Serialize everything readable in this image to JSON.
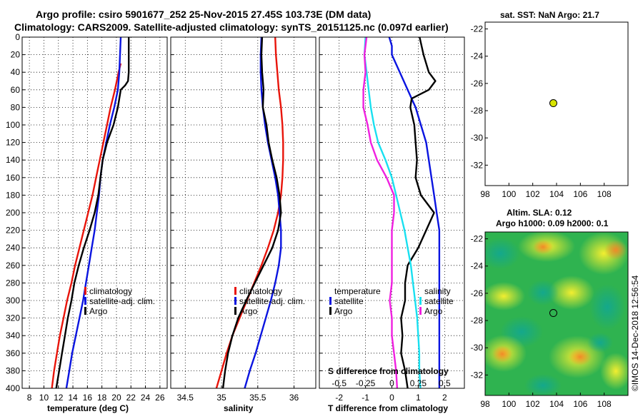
{
  "header": {
    "line1": "Argo profile: csiro 5901677_252 25-Nov-2015 27.45S 103.73E (DM data)",
    "line2": "Climatology: CARS2009. Satellite-adjusted climatology: synTS_20151125.nc (0.097d earlier)"
  },
  "colors": {
    "clim": "#e8140a",
    "sat": "#0a14e0",
    "argo": "#000000",
    "sat_sal": "#18e0f0",
    "clim_sal": "#f020e0"
  },
  "sidebar_stamp": "©IMOS 14-Dec-2018 12:56:54",
  "chart_data": [
    {
      "type": "line",
      "id": "temperature",
      "xlabel": "temperature (deg C)",
      "xlim": [
        7,
        27
      ],
      "ylim": [
        400,
        0
      ],
      "xticks": [
        8,
        10,
        12,
        14,
        16,
        18,
        20,
        22,
        24,
        26
      ],
      "yticks": [
        0,
        20,
        40,
        60,
        80,
        100,
        120,
        140,
        160,
        180,
        200,
        220,
        240,
        260,
        280,
        300,
        320,
        340,
        360,
        380,
        400
      ],
      "legend": [
        "climatology",
        "satellite-adj. clim.",
        "Argo"
      ],
      "series": [
        {
          "name": "climatology",
          "color": "clim",
          "points": [
            [
              20.6,
              30
            ],
            [
              20.3,
              40
            ],
            [
              19.8,
              60
            ],
            [
              19.2,
              80
            ],
            [
              18.7,
              100
            ],
            [
              18.2,
              120
            ],
            [
              17.7,
              140
            ],
            [
              17.2,
              160
            ],
            [
              16.7,
              180
            ],
            [
              16.1,
              200
            ],
            [
              15.5,
              220
            ],
            [
              14.9,
              240
            ],
            [
              14.3,
              260
            ],
            [
              13.8,
              280
            ],
            [
              13.2,
              300
            ],
            [
              12.7,
              320
            ],
            [
              12.2,
              340
            ],
            [
              11.8,
              360
            ],
            [
              11.4,
              380
            ],
            [
              11.1,
              400
            ]
          ]
        },
        {
          "name": "satellite-adj. clim.",
          "color": "sat",
          "points": [
            [
              20.6,
              0
            ],
            [
              20.5,
              20
            ],
            [
              20.4,
              40
            ],
            [
              20.2,
              60
            ],
            [
              19.7,
              80
            ],
            [
              19.1,
              100
            ],
            [
              18.6,
              120
            ],
            [
              18.1,
              140
            ],
            [
              17.8,
              160
            ],
            [
              17.6,
              180
            ],
            [
              17.3,
              200
            ],
            [
              17.0,
              220
            ],
            [
              16.6,
              240
            ],
            [
              16.2,
              260
            ],
            [
              15.8,
              280
            ],
            [
              15.4,
              300
            ],
            [
              14.9,
              320
            ],
            [
              14.4,
              340
            ],
            [
              13.9,
              360
            ],
            [
              13.5,
              380
            ],
            [
              13.1,
              400
            ]
          ]
        },
        {
          "name": "Argo",
          "color": "argo",
          "points": [
            [
              21.7,
              0
            ],
            [
              21.7,
              20
            ],
            [
              21.7,
              40
            ],
            [
              21.6,
              50
            ],
            [
              21.2,
              55
            ],
            [
              20.6,
              60
            ],
            [
              20.2,
              80
            ],
            [
              19.6,
              100
            ],
            [
              18.7,
              120
            ],
            [
              18.1,
              140
            ],
            [
              17.8,
              160
            ],
            [
              17.5,
              180
            ],
            [
              17.0,
              200
            ],
            [
              16.3,
              220
            ],
            [
              15.5,
              240
            ],
            [
              14.8,
              260
            ],
            [
              14.2,
              280
            ],
            [
              13.8,
              300
            ],
            [
              13.3,
              320
            ],
            [
              12.9,
              340
            ],
            [
              12.5,
              360
            ],
            [
              12.1,
              380
            ],
            [
              11.7,
              400
            ]
          ]
        }
      ]
    },
    {
      "type": "line",
      "id": "salinity",
      "xlabel": "salinity",
      "xlim": [
        34.3,
        36.3
      ],
      "ylim": [
        400,
        0
      ],
      "xticks": [
        34.5,
        35,
        35.5,
        36
      ],
      "legend": [
        "climatology",
        "satellite-adj. clim.",
        "Argo"
      ],
      "series": [
        {
          "name": "climatology",
          "color": "clim",
          "points": [
            [
              35.74,
              0
            ],
            [
              35.75,
              20
            ],
            [
              35.77,
              40
            ],
            [
              35.79,
              60
            ],
            [
              35.82,
              80
            ],
            [
              35.84,
              100
            ],
            [
              35.85,
              120
            ],
            [
              35.85,
              140
            ],
            [
              35.84,
              160
            ],
            [
              35.82,
              180
            ],
            [
              35.78,
              200
            ],
            [
              35.72,
              220
            ],
            [
              35.64,
              240
            ],
            [
              35.55,
              260
            ],
            [
              35.45,
              280
            ],
            [
              35.35,
              300
            ],
            [
              35.25,
              320
            ],
            [
              35.15,
              340
            ],
            [
              35.07,
              360
            ],
            [
              35.0,
              380
            ],
            [
              34.93,
              400
            ]
          ]
        },
        {
          "name": "satellite-adj. clim.",
          "color": "sat",
          "points": [
            [
              35.55,
              0
            ],
            [
              35.54,
              20
            ],
            [
              35.54,
              40
            ],
            [
              35.55,
              60
            ],
            [
              35.57,
              80
            ],
            [
              35.6,
              100
            ],
            [
              35.64,
              120
            ],
            [
              35.69,
              140
            ],
            [
              35.74,
              160
            ],
            [
              35.78,
              180
            ],
            [
              35.8,
              200
            ],
            [
              35.82,
              220
            ],
            [
              35.82,
              240
            ],
            [
              35.79,
              260
            ],
            [
              35.74,
              280
            ],
            [
              35.68,
              300
            ],
            [
              35.61,
              320
            ],
            [
              35.54,
              340
            ],
            [
              35.47,
              360
            ],
            [
              35.39,
              380
            ],
            [
              35.32,
              400
            ]
          ]
        },
        {
          "name": "Argo",
          "color": "argo",
          "points": [
            [
              35.56,
              0
            ],
            [
              35.55,
              20
            ],
            [
              35.56,
              40
            ],
            [
              35.58,
              60
            ],
            [
              35.57,
              80
            ],
            [
              35.62,
              100
            ],
            [
              35.65,
              120
            ],
            [
              35.7,
              140
            ],
            [
              35.76,
              160
            ],
            [
              35.8,
              180
            ],
            [
              35.82,
              200
            ],
            [
              35.78,
              220
            ],
            [
              35.7,
              240
            ],
            [
              35.58,
              260
            ],
            [
              35.46,
              280
            ],
            [
              35.34,
              300
            ],
            [
              35.23,
              320
            ],
            [
              35.15,
              340
            ],
            [
              35.09,
              360
            ],
            [
              35.05,
              380
            ],
            [
              35.02,
              400
            ]
          ]
        }
      ]
    },
    {
      "type": "line",
      "id": "difference",
      "xlabel": "T difference from climatology",
      "x2label": "S difference from climatology",
      "xlim": [
        -2.75,
        2.75
      ],
      "x2lim": [
        -0.6875,
        0.6875
      ],
      "ylim": [
        400,
        0
      ],
      "xticks": [
        -2,
        -1,
        0,
        1,
        2
      ],
      "x2ticks": [
        "-0.5",
        "-0.25",
        "0",
        "0.25",
        "0.5"
      ],
      "legend_left_title": "temperature",
      "legend_left": [
        "satellite",
        "Argo"
      ],
      "legend_right_title": "salinity",
      "legend_right": [
        "satellite",
        "Argo"
      ],
      "series": [
        {
          "name": "T satellite",
          "color": "sat",
          "points": [
            [
              -0.1,
              0
            ],
            [
              0.0,
              10
            ],
            [
              0.0,
              20
            ],
            [
              0.3,
              40
            ],
            [
              0.6,
              60
            ],
            [
              0.9,
              80
            ],
            [
              1.1,
              100
            ],
            [
              1.3,
              120
            ],
            [
              1.4,
              140
            ],
            [
              1.5,
              160
            ],
            [
              1.6,
              180
            ],
            [
              1.7,
              200
            ],
            [
              1.8,
              220
            ],
            [
              1.8,
              240
            ],
            [
              1.8,
              260
            ],
            [
              1.8,
              280
            ],
            [
              1.8,
              300
            ],
            [
              1.8,
              320
            ],
            [
              1.8,
              340
            ],
            [
              1.8,
              360
            ],
            [
              1.8,
              380
            ],
            [
              1.8,
              400
            ]
          ]
        },
        {
          "name": "T Argo",
          "color": "argo",
          "points": [
            [
              1.05,
              0
            ],
            [
              1.2,
              20
            ],
            [
              1.4,
              40
            ],
            [
              1.65,
              50
            ],
            [
              1.4,
              60
            ],
            [
              0.75,
              70
            ],
            [
              0.7,
              80
            ],
            [
              0.85,
              100
            ],
            [
              0.9,
              120
            ],
            [
              0.95,
              140
            ],
            [
              0.9,
              160
            ],
            [
              1.1,
              180
            ],
            [
              1.6,
              200
            ],
            [
              1.3,
              220
            ],
            [
              1.0,
              240
            ],
            [
              0.6,
              260
            ],
            [
              0.5,
              280
            ],
            [
              0.5,
              300
            ],
            [
              0.35,
              320
            ],
            [
              0.4,
              340
            ],
            [
              0.35,
              360
            ],
            [
              0.5,
              380
            ],
            [
              0.6,
              400
            ]
          ]
        },
        {
          "name": "S satellite",
          "color": "sat_sal",
          "points": [
            [
              -0.25,
              0
            ],
            [
              -0.26,
              20
            ],
            [
              -0.24,
              40
            ],
            [
              -0.22,
              60
            ],
            [
              -0.2,
              80
            ],
            [
              -0.17,
              100
            ],
            [
              -0.13,
              120
            ],
            [
              -0.06,
              140
            ],
            [
              0.0,
              160
            ],
            [
              0.04,
              180
            ],
            [
              0.08,
              200
            ],
            [
              0.12,
              220
            ],
            [
              0.15,
              240
            ],
            [
              0.18,
              260
            ],
            [
              0.2,
              280
            ],
            [
              0.22,
              300
            ],
            [
              0.24,
              320
            ],
            [
              0.25,
              340
            ],
            [
              0.26,
              360
            ],
            [
              0.26,
              380
            ],
            [
              0.27,
              400
            ]
          ]
        },
        {
          "name": "S Argo",
          "color": "clim_sal",
          "points": [
            [
              -0.24,
              0
            ],
            [
              -0.26,
              20
            ],
            [
              -0.25,
              40
            ],
            [
              -0.27,
              60
            ],
            [
              -0.27,
              80
            ],
            [
              -0.23,
              100
            ],
            [
              -0.2,
              120
            ],
            [
              -0.14,
              140
            ],
            [
              -0.05,
              160
            ],
            [
              0.02,
              180
            ],
            [
              0.02,
              200
            ],
            [
              0.0,
              220
            ],
            [
              0.0,
              240
            ],
            [
              0.0,
              260
            ],
            [
              0.0,
              280
            ],
            [
              -0.02,
              300
            ],
            [
              0.0,
              320
            ],
            [
              0.0,
              340
            ],
            [
              0.02,
              360
            ],
            [
              0.04,
              380
            ],
            [
              0.05,
              400
            ]
          ]
        }
      ]
    },
    {
      "type": "scatter",
      "id": "sst_map",
      "title": "sat. SST: NaN Argo: 21.7",
      "xlim": [
        98,
        110
      ],
      "ylim": [
        -33.5,
        -21.5
      ],
      "xticks": [
        98,
        100,
        102,
        104,
        106,
        108
      ],
      "yticks": [
        -22,
        -24,
        -26,
        -28,
        -30,
        -32
      ],
      "points": [
        {
          "x": 103.73,
          "y": -27.45
        }
      ]
    },
    {
      "type": "heatmap",
      "id": "sla_map",
      "title1": "Altim. SLA: 0.12",
      "title2": "Argo h1000: 0.09 h2000: 0.1",
      "xlim": [
        98,
        110
      ],
      "ylim": [
        -33.5,
        -21.5
      ],
      "xticks": [
        98,
        100,
        102,
        104,
        106,
        108
      ],
      "yticks": [
        -22,
        -24,
        -26,
        -28,
        -30,
        -32
      ],
      "points": [
        {
          "x": 103.73,
          "y": -27.45
        }
      ]
    }
  ]
}
